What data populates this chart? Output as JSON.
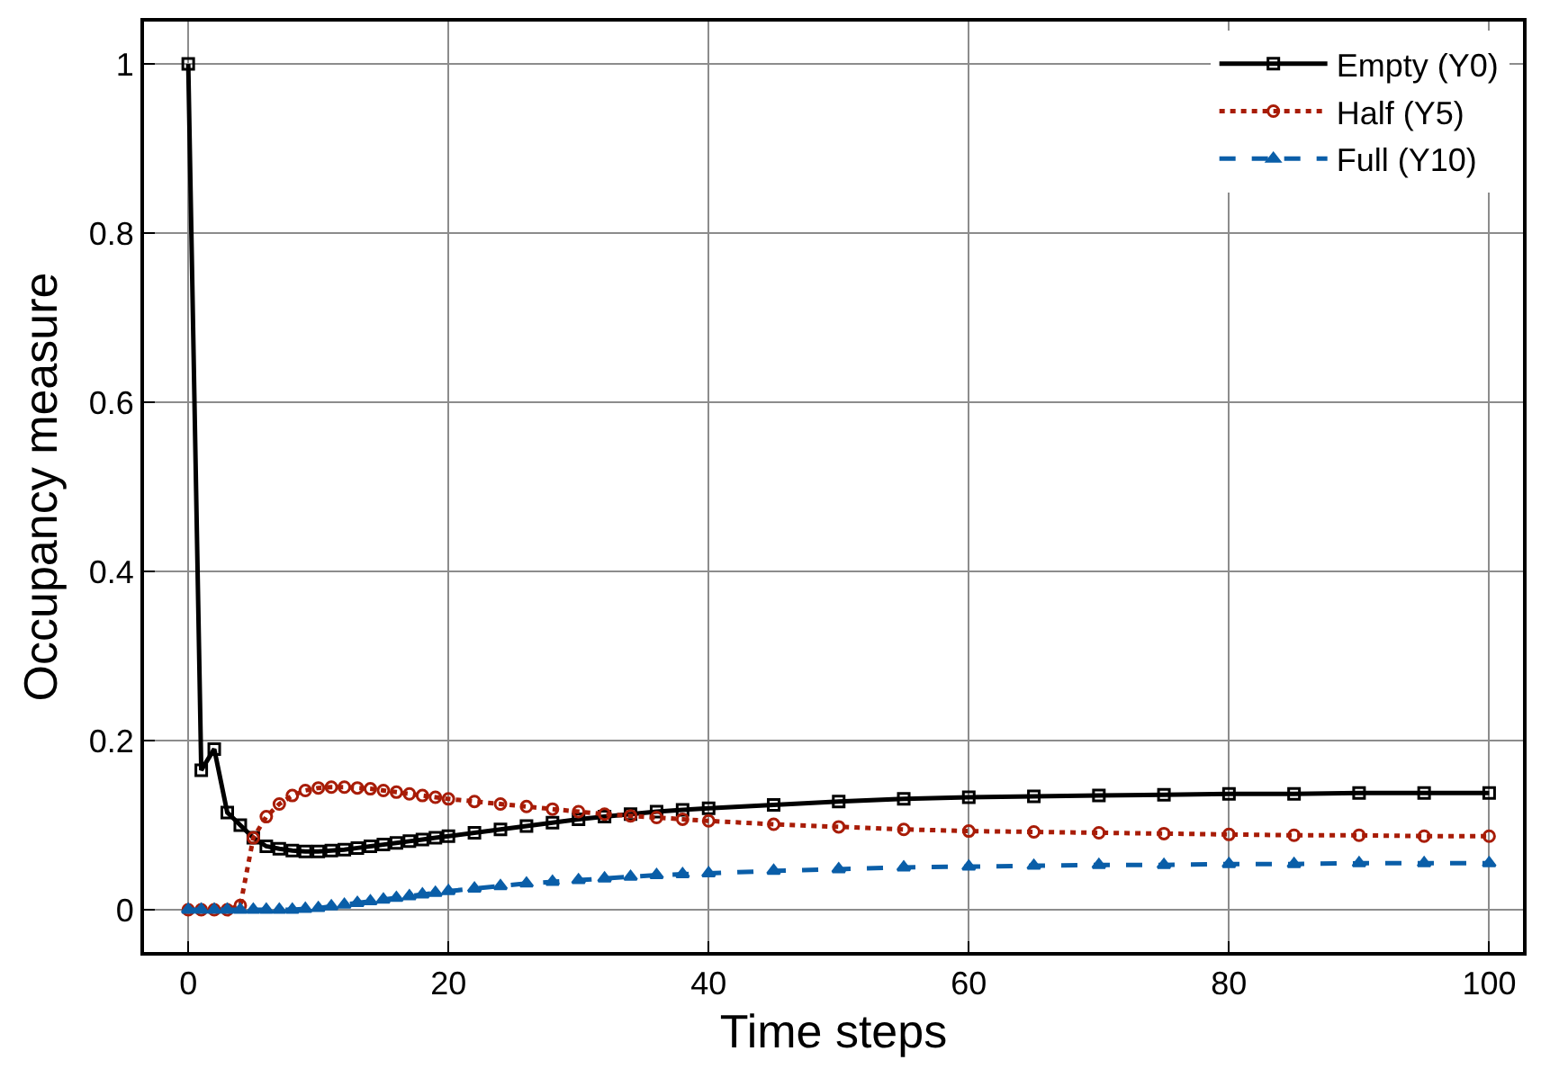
{
  "chart_data": {
    "type": "line",
    "xlabel": "Time steps",
    "ylabel": "Occupancy measure",
    "x": [
      0,
      1,
      2,
      3,
      4,
      5,
      6,
      7,
      8,
      9,
      10,
      11,
      12,
      13,
      14,
      15,
      16,
      17,
      18,
      19,
      20,
      22,
      24,
      26,
      28,
      30,
      32,
      34,
      36,
      38,
      40,
      45,
      50,
      55,
      60,
      65,
      70,
      75,
      80,
      85,
      90,
      95,
      100
    ],
    "series": [
      {
        "name": "Empty (Y0)",
        "color": "#000000",
        "marker": "square",
        "line_style": "solid",
        "values": [
          1.0,
          0.165,
          0.19,
          0.115,
          0.1,
          0.085,
          0.075,
          0.072,
          0.07,
          0.069,
          0.069,
          0.07,
          0.071,
          0.073,
          0.075,
          0.077,
          0.079,
          0.081,
          0.083,
          0.085,
          0.087,
          0.091,
          0.095,
          0.099,
          0.103,
          0.107,
          0.11,
          0.113,
          0.116,
          0.118,
          0.12,
          0.124,
          0.128,
          0.131,
          0.133,
          0.134,
          0.135,
          0.136,
          0.137,
          0.137,
          0.138,
          0.138,
          0.138
        ]
      },
      {
        "name": "Half (Y5)",
        "color": "#a81c07",
        "marker": "circle",
        "line_style": "dotted",
        "values": [
          0,
          0,
          0,
          0,
          0.005,
          0.085,
          0.11,
          0.125,
          0.135,
          0.141,
          0.144,
          0.145,
          0.145,
          0.144,
          0.143,
          0.141,
          0.139,
          0.137,
          0.135,
          0.133,
          0.131,
          0.128,
          0.125,
          0.122,
          0.119,
          0.116,
          0.113,
          0.111,
          0.109,
          0.107,
          0.105,
          0.101,
          0.098,
          0.095,
          0.093,
          0.092,
          0.091,
          0.09,
          0.089,
          0.088,
          0.088,
          0.087,
          0.087
        ]
      },
      {
        "name": "Full (Y10)",
        "color": "#0a5ea8",
        "marker": "triangle",
        "line_style": "dashed",
        "values": [
          0,
          0,
          0,
          0,
          0,
          0,
          0,
          0,
          0,
          0.001,
          0.002,
          0.004,
          0.006,
          0.008,
          0.01,
          0.012,
          0.014,
          0.016,
          0.018,
          0.02,
          0.022,
          0.025,
          0.028,
          0.031,
          0.033,
          0.035,
          0.037,
          0.039,
          0.041,
          0.042,
          0.043,
          0.046,
          0.048,
          0.05,
          0.051,
          0.052,
          0.053,
          0.053,
          0.054,
          0.054,
          0.055,
          0.055,
          0.055
        ]
      }
    ],
    "xlim": [
      -3.4,
      102.6
    ],
    "xticks": [
      0,
      20,
      40,
      60,
      80,
      100
    ],
    "ylim": [
      -0.05,
      1.05
    ],
    "yticks": [
      0,
      0.2,
      0.4,
      0.6,
      0.8,
      1
    ],
    "grid": true,
    "legend": "top right"
  }
}
